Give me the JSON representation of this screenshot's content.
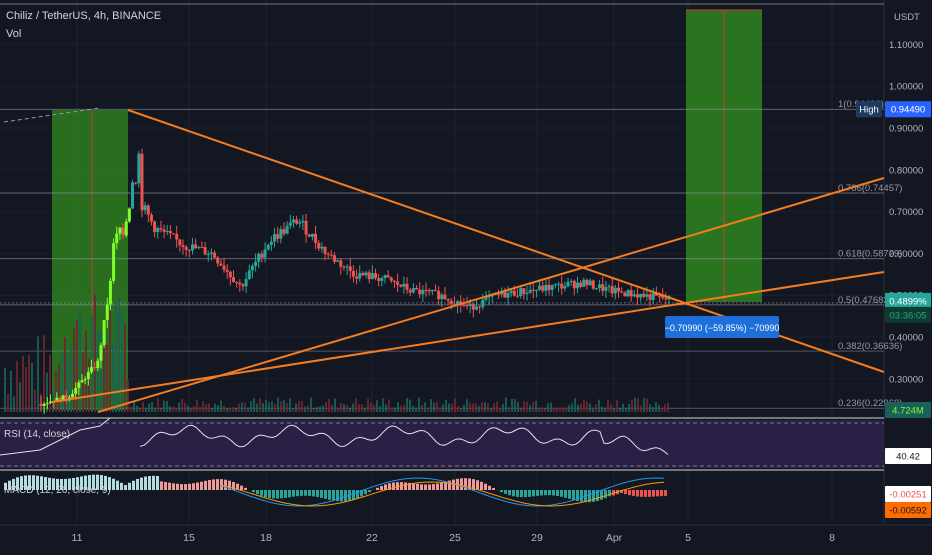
{
  "header": {
    "symbol": "Chiliz / TetherUS, 4h, BINANCE",
    "vol_label": "Vol"
  },
  "price_axis": {
    "currency": "USDT",
    "ticks": [
      "1.10000",
      "1.00000",
      "0.90000",
      "0.80000",
      "0.70000",
      "0.60000",
      "0.50000",
      "0.40000",
      "0.30000"
    ],
    "high_badge": "High",
    "high_value": "0.94490",
    "last_price": "0.4899%",
    "countdown": "03:36:05",
    "green_tag": "4.724M"
  },
  "date_axis": {
    "labels": [
      "11",
      "15",
      "18",
      "22",
      "25",
      "29",
      "Apr",
      "5",
      "8"
    ]
  },
  "fib": [
    {
      "level": "1(0.94490)",
      "price": 0.9449
    },
    {
      "level": "0.786(0.74457)",
      "price": 0.74457
    },
    {
      "level": "0.618(0.58729)",
      "price": 0.58729
    },
    {
      "level": "0.5(0.47683)",
      "price": 0.47683
    },
    {
      "level": "0.382(0.36636)",
      "price": 0.36636
    },
    {
      "level": "0.236(0.22969)",
      "price": 0.22969
    }
  ],
  "measure_label": "−0.70990 (−59.85%) −70990",
  "rsi": {
    "label": "RSI (14, close)",
    "value": "40.42"
  },
  "macd": {
    "label": "MACD (12, 26, close, 9)",
    "value1": "-0.00251",
    "value2": "-0.00592"
  },
  "colors": {
    "background": "#131722",
    "up": "#26a69a",
    "up_bright": "#7fff2a",
    "down": "#ef5350",
    "trendline": "#f57c1f",
    "zone_green": "#2e7d1f",
    "rsi_bg": "#2a1f45",
    "accent_blue": "#2962ff"
  },
  "chart_data": {
    "type": "candlestick",
    "title": "Chiliz / TetherUS, 4h, BINANCE",
    "xlabel": "",
    "ylabel": "USDT",
    "ylim": [
      0.22,
      1.2
    ],
    "x_tick_labels": [
      "11",
      "15",
      "18",
      "22",
      "25",
      "29",
      "Apr",
      "5",
      "8"
    ],
    "close_series": [
      {
        "x": "Mar 10",
        "y": 0.24
      },
      {
        "x": "Mar 11",
        "y": 0.26
      },
      {
        "x": "Mar 12",
        "y": 0.34
      },
      {
        "x": "Mar 13",
        "y": 0.78
      },
      {
        "x": "Mar 14",
        "y": 0.66
      },
      {
        "x": "Mar 15",
        "y": 0.62
      },
      {
        "x": "Mar 16",
        "y": 0.6
      },
      {
        "x": "Mar 17",
        "y": 0.52
      },
      {
        "x": "Mar 18",
        "y": 0.63
      },
      {
        "x": "Mar 19",
        "y": 0.68
      },
      {
        "x": "Mar 20",
        "y": 0.6
      },
      {
        "x": "Mar 21",
        "y": 0.55
      },
      {
        "x": "Mar 22",
        "y": 0.54
      },
      {
        "x": "Mar 23",
        "y": 0.51
      },
      {
        "x": "Mar 24",
        "y": 0.5
      },
      {
        "x": "Mar 25",
        "y": 0.47
      },
      {
        "x": "Mar 26",
        "y": 0.5
      },
      {
        "x": "Mar 27",
        "y": 0.51
      },
      {
        "x": "Mar 28",
        "y": 0.52
      },
      {
        "x": "Mar 29",
        "y": 0.53
      },
      {
        "x": "Mar 30",
        "y": 0.51
      },
      {
        "x": "Mar 31",
        "y": 0.5
      },
      {
        "x": "Apr 1",
        "y": 0.49
      }
    ],
    "fib_levels": [
      0.9449,
      0.74457,
      0.58729,
      0.47683,
      0.36636,
      0.22969
    ],
    "rsi_current": 40.42,
    "macd_values": [
      -0.00251,
      -0.00592
    ]
  }
}
